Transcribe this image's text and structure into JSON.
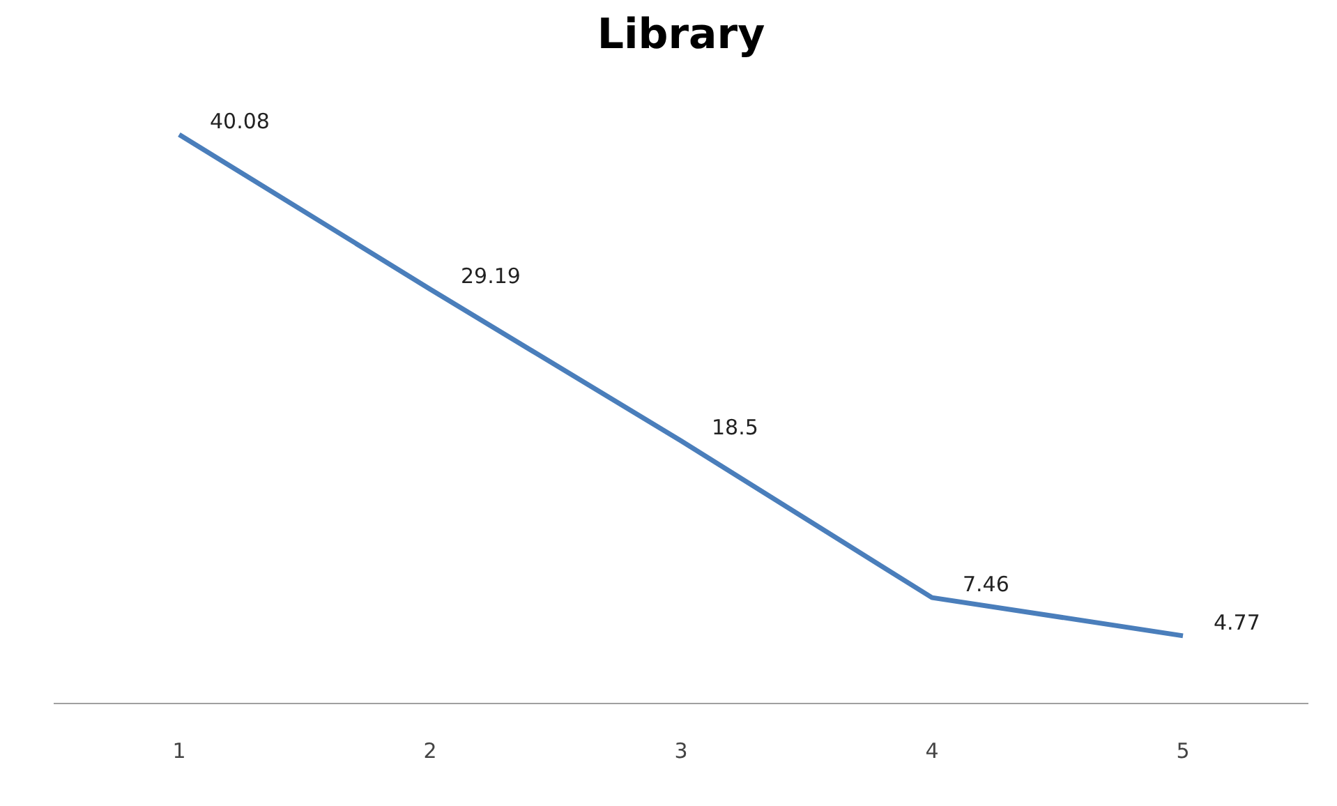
{
  "chart_data": {
    "type": "line",
    "title": "Library",
    "categories": [
      "1",
      "2",
      "3",
      "4",
      "5"
    ],
    "series": [
      {
        "color": "#4a7ebb",
        "values": [
          40.08,
          29.19,
          18.5,
          7.46,
          4.77
        ]
      }
    ],
    "data_labels": true,
    "grid": false,
    "marker": "none",
    "line_style": "solid",
    "tick_labels": "x"
  }
}
